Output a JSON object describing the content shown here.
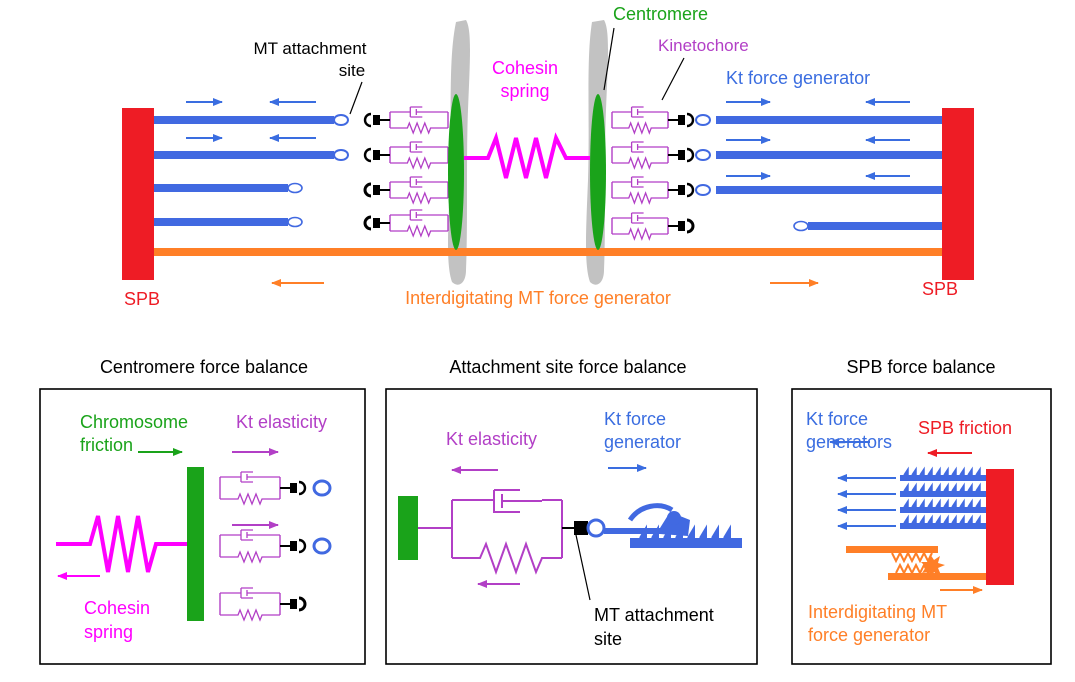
{
  "colors": {
    "spb": "#ee1c25",
    "mt": "#4169e1",
    "interdigitating": "#ff7f27",
    "centromere": "#1aa31a",
    "chromatin": "#c2c2c2",
    "kinetochore": "#b23fc6",
    "cohesin": "#ff00ff",
    "black": "#000000",
    "arrow_blue": "#3a6de0"
  },
  "icons": [
    "spring-icon",
    "dashpot-icon",
    "ring-icon",
    "c-clamp-icon",
    "ratchet-icon",
    "arrow-icon"
  ],
  "top": {
    "labels": {
      "mt_attachment_site_line1": "MT attachment",
      "mt_attachment_site_line2": "site",
      "cohesin_spring_line1": "Cohesin",
      "cohesin_spring_line2": "spring",
      "centromere": "Centromere",
      "kinetochore": "Kinetochore",
      "kt_force_generator": "Kt force generator",
      "spb_left": "SPB",
      "spb_right": "SPB",
      "interdigitating": "Interdigitating MT force generator"
    }
  },
  "panels": {
    "centromere": {
      "title": "Centromere force balance",
      "chromosome_friction_line1": "Chromosome",
      "chromosome_friction_line2": "friction",
      "kt_elasticity": "Kt elasticity",
      "cohesin_line1": "Cohesin",
      "cohesin_line2": "spring"
    },
    "attachment": {
      "title": "Attachment site force balance",
      "kt_elasticity": "Kt elasticity",
      "kt_force_line1": "Kt force",
      "kt_force_line2": "generator",
      "mt_site_line1": "MT attachment",
      "mt_site_line2": "site"
    },
    "spb": {
      "title": "SPB force balance",
      "kt_force_line1": "Kt force",
      "kt_force_line2": "generators",
      "spb_friction": "SPB friction",
      "interdig_line1": "Interdigitating MT",
      "interdig_line2": "force generator"
    }
  }
}
